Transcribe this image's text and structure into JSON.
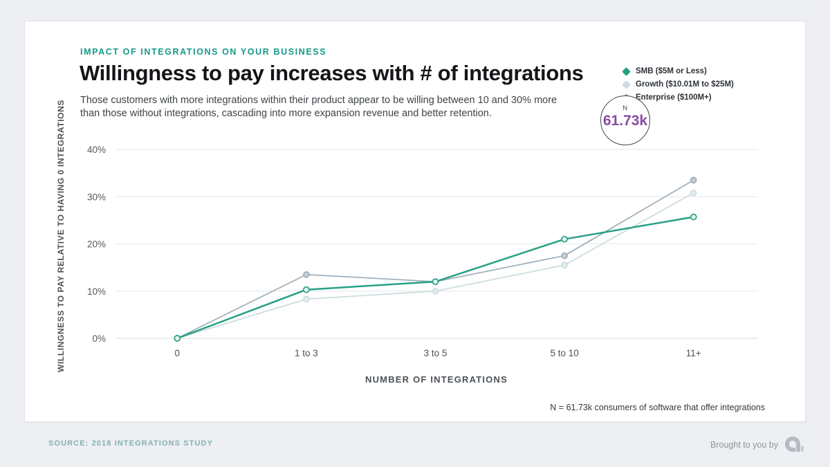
{
  "header": {
    "eyebrow": "IMPACT OF INTEGRATIONS ON YOUR BUSINESS",
    "title": "Willingness to pay increases with # of integrations",
    "subtitle": "Those customers with more integrations within their product appear to be willing between 10 and 30% more than those without integrations, cascading into more expansion revenue and better retention."
  },
  "n_badge": {
    "label": "N",
    "value": "61.73k",
    "value_color": "#8a4ba1"
  },
  "footnote": "N = 61.73k consumers of software that offer integrations",
  "footer": {
    "source": "SOURCE: 2018 INTEGRATIONS STUDY",
    "brought_by": "Brought to you by",
    "logo_name": "brand-mark"
  },
  "colors": {
    "accent_teal": "#149a8b",
    "page_bg": "#edeff3",
    "card_bg": "#ffffff",
    "grid": "#e5e7ea",
    "zero_line": "#d9dbde",
    "n_value_purple": "#8a4ba1"
  },
  "chart_data": {
    "type": "line",
    "title": "Willingness to pay increases with # of integrations",
    "categories": [
      "0",
      "1 to 3",
      "3 to 5",
      "5 to 10",
      "11+"
    ],
    "series": [
      {
        "name": "SMB ($5M or Less)",
        "color": "#26a084",
        "marker_fill": "#e9f6f1",
        "line_width": 2.5,
        "values": [
          0,
          10.3,
          12,
          21,
          25.7
        ]
      },
      {
        "name": "Growth ($10.01M to $25M)",
        "color": "#ccdce0",
        "marker_fill": "#e3ecef",
        "line_width": 1.75,
        "values": [
          0,
          8.3,
          10,
          15.5,
          30.8
        ]
      },
      {
        "name": "Enterprise ($100M+)",
        "color": "#9fafbb",
        "marker_fill": "#c3cdd5",
        "line_width": 1.75,
        "values": [
          0,
          13.5,
          12,
          17.5,
          33.5
        ]
      }
    ],
    "draw_order": [
      1,
      2,
      0
    ],
    "xlabel": "NUMBER OF INTEGRATIONS",
    "ylabel": "WILLINGNESS TO PAY RELATIVE TO HAVING 0 INTEGRATIONS",
    "ylim": [
      0,
      40
    ],
    "yticks": [
      0,
      10,
      20,
      30,
      40
    ],
    "ytick_suffix": "%",
    "grid": "horizontal",
    "legend_position": "top-right"
  }
}
